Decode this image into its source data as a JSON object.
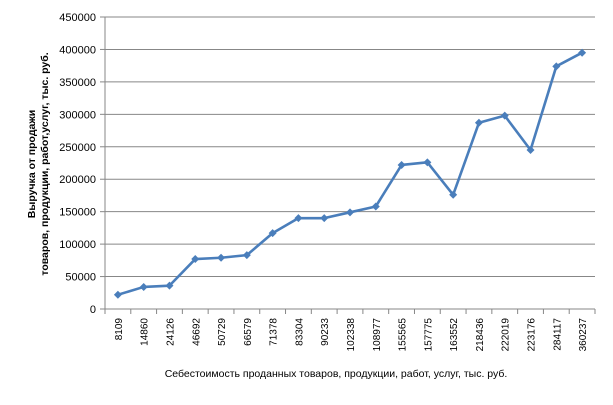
{
  "chart_data": {
    "type": "line",
    "title": "",
    "xlabel": "Себестоимость проданных товаров,  продукции,  работ, услуг, тыс. руб.",
    "ylabel": {
      "line1": "Выручка  от продажи",
      "line2": "товаров, продукции,  работ,услуг,  тыс.  руб."
    },
    "ylim": [
      0,
      450000
    ],
    "yticks": [
      0,
      50000,
      100000,
      150000,
      200000,
      250000,
      300000,
      350000,
      400000,
      450000
    ],
    "grid": "horizontal",
    "legend": "none",
    "categories": [
      "8109",
      "14860",
      "24126",
      "46692",
      "50729",
      "66579",
      "71378",
      "83304",
      "90233",
      "102338",
      "108977",
      "155565",
      "157775",
      "163552",
      "218436",
      "222019",
      "223176",
      "284117",
      "360237"
    ],
    "series": [
      {
        "color": "#4A7EBB",
        "values": [
          22000,
          34000,
          36000,
          77000,
          79000,
          83000,
          117000,
          140000,
          140000,
          149000,
          158000,
          222000,
          226000,
          176000,
          287000,
          298000,
          245000,
          374000,
          395000
        ]
      }
    ]
  }
}
